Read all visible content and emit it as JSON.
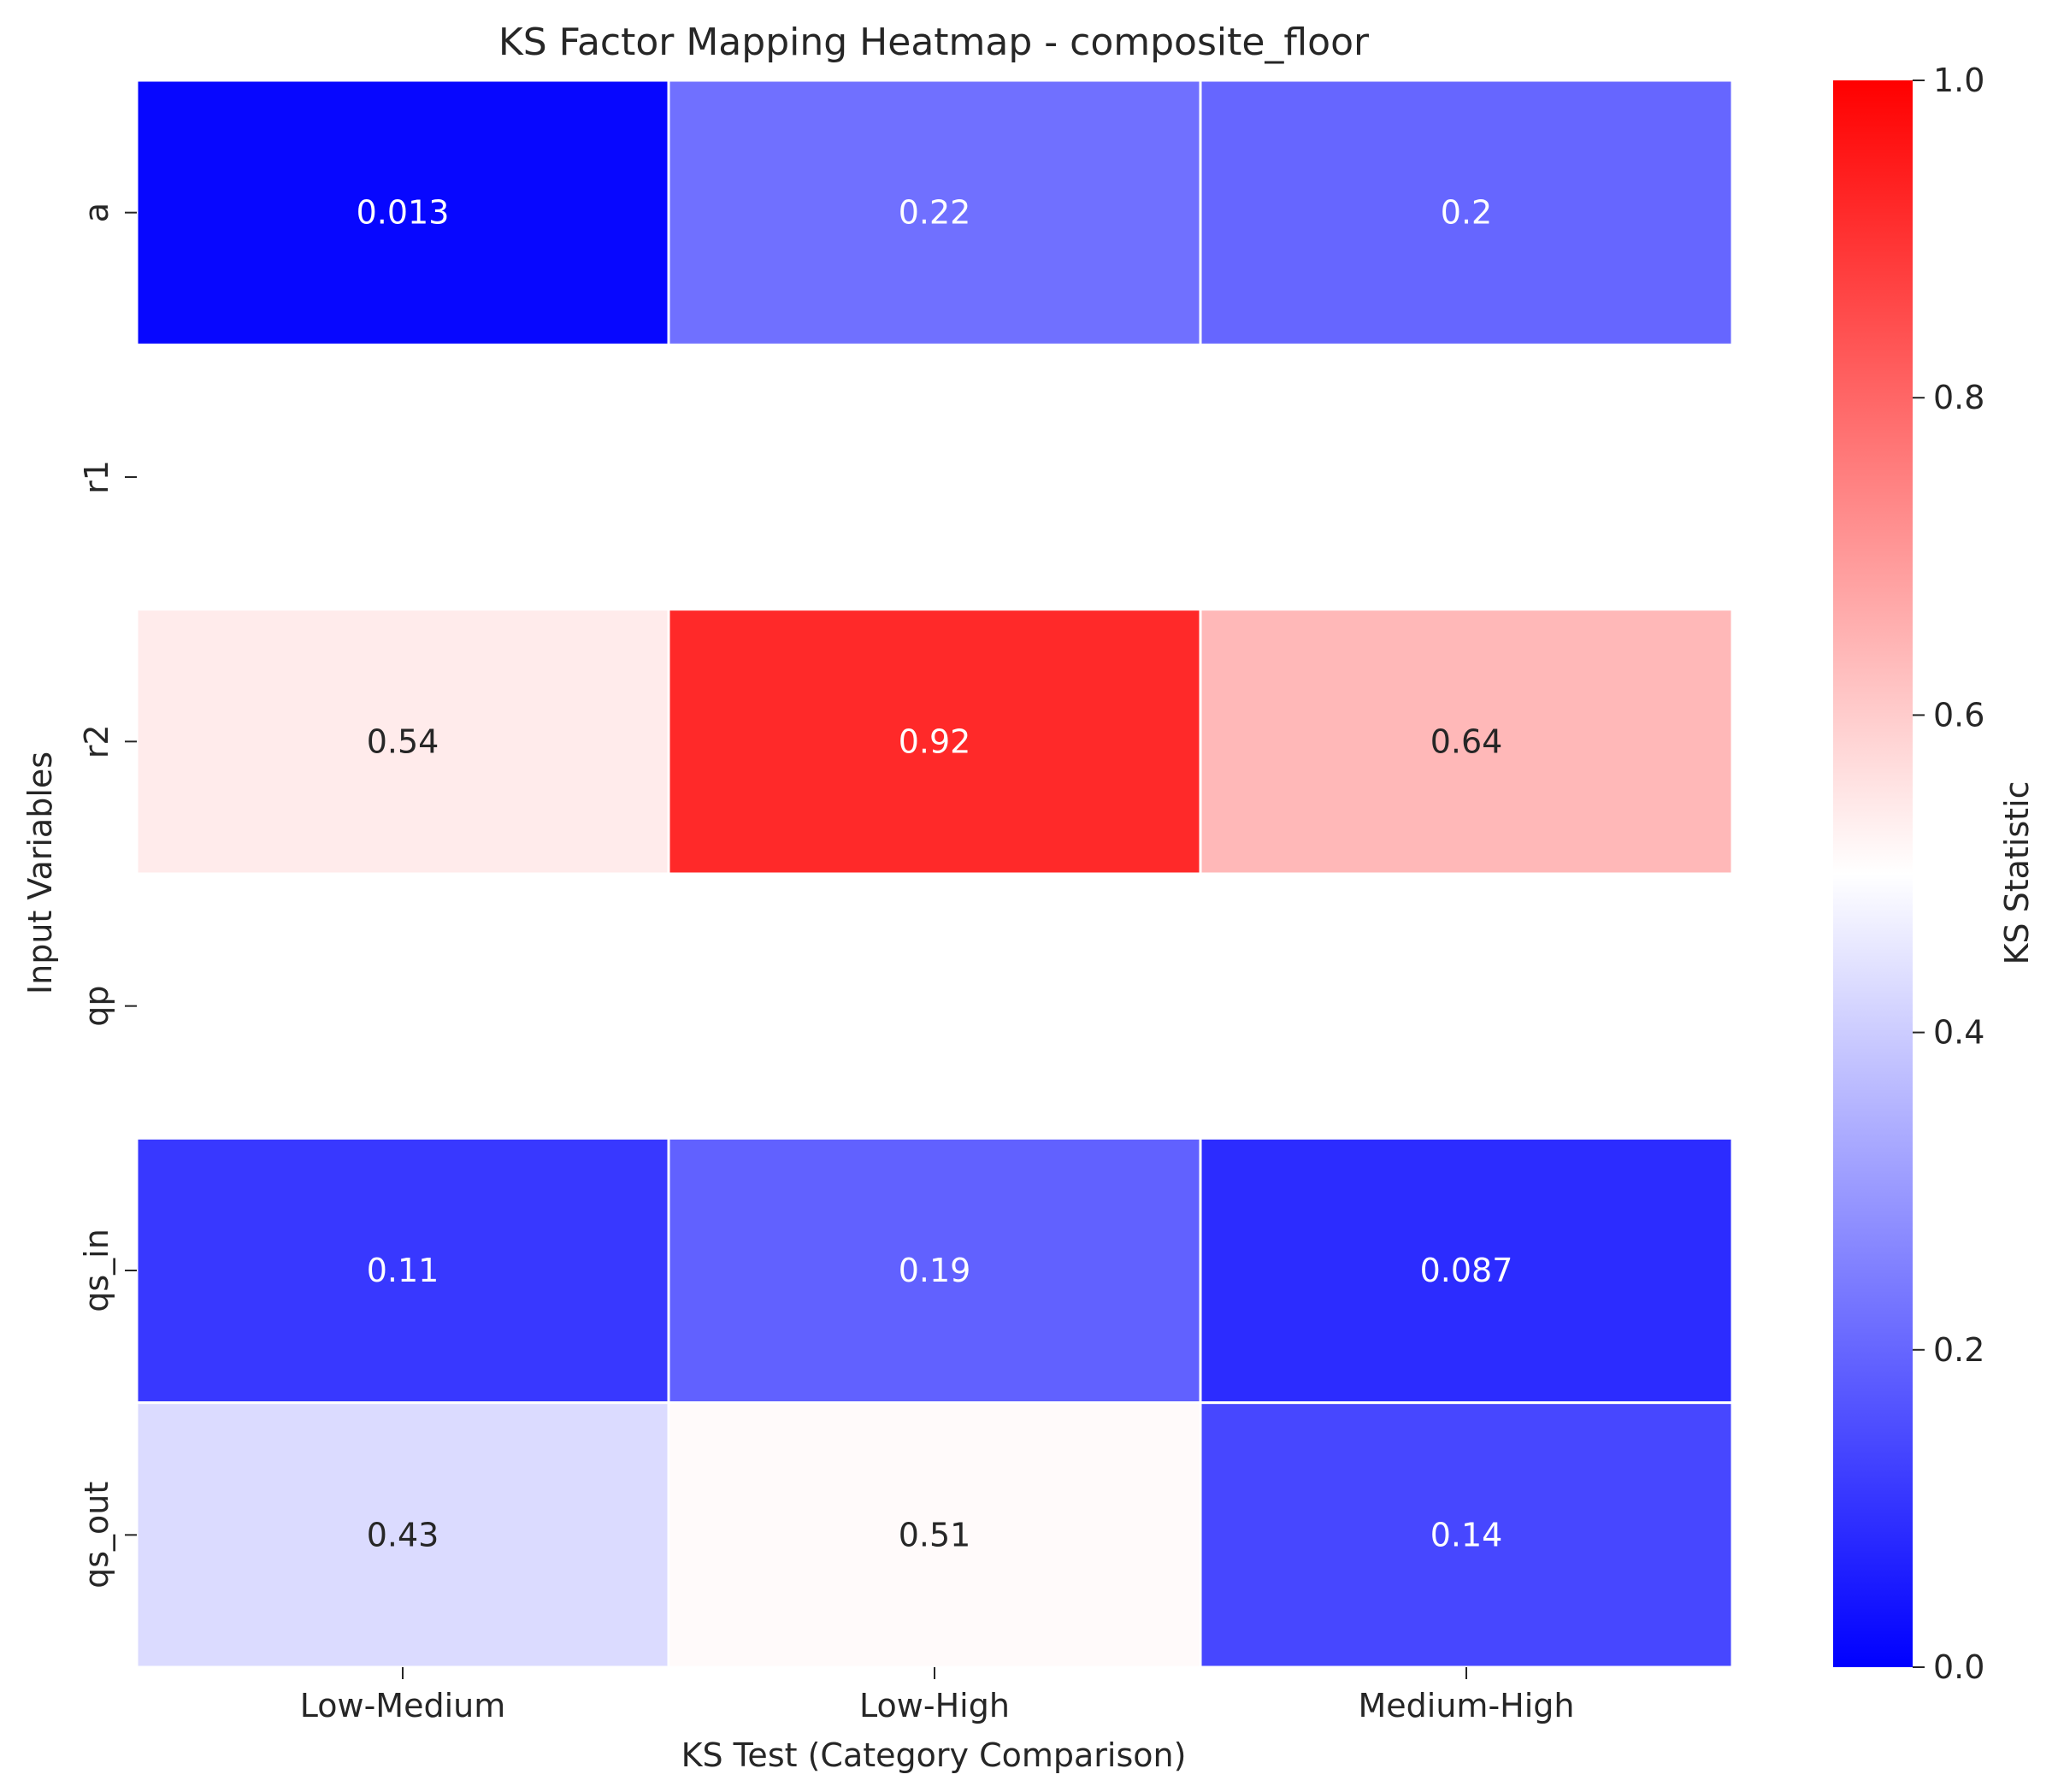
{
  "chart_data": {
    "type": "heatmap",
    "title": "KS Factor Mapping Heatmap - composite_floor",
    "xlabel": "KS Test (Category Comparison)",
    "ylabel": "Input Variables",
    "x_categories": [
      "Low-Medium",
      "Low-High",
      "Medium-High"
    ],
    "y_categories": [
      "a",
      "r1",
      "r2",
      "qp",
      "qs_in",
      "qs_out"
    ],
    "values": [
      [
        0.013,
        0.22,
        0.2
      ],
      [
        null,
        null,
        null
      ],
      [
        0.54,
        0.92,
        0.64
      ],
      [
        null,
        null,
        null
      ],
      [
        0.11,
        0.19,
        0.087
      ],
      [
        0.43,
        0.51,
        0.14
      ]
    ],
    "annotations": [
      [
        "0.013",
        "0.22",
        "0.2"
      ],
      [
        "",
        "",
        ""
      ],
      [
        "0.54",
        "0.92",
        "0.64"
      ],
      [
        "",
        "",
        ""
      ],
      [
        "0.11",
        "0.19",
        "0.087"
      ],
      [
        "0.43",
        "0.51",
        "0.14"
      ]
    ],
    "colorbar": {
      "label": "KS Statistic",
      "range": [
        0.0,
        1.0
      ],
      "ticks": [
        0.0,
        0.2,
        0.4,
        0.6,
        0.8,
        1.0
      ],
      "tick_labels": [
        "0.0",
        "0.2",
        "0.4",
        "0.6",
        "0.8",
        "1.0"
      ],
      "colormap": "bwr",
      "colors": {
        "low": "#0000ff",
        "mid": "#ffffff",
        "high": "#ff0000"
      }
    },
    "grid": false
  }
}
